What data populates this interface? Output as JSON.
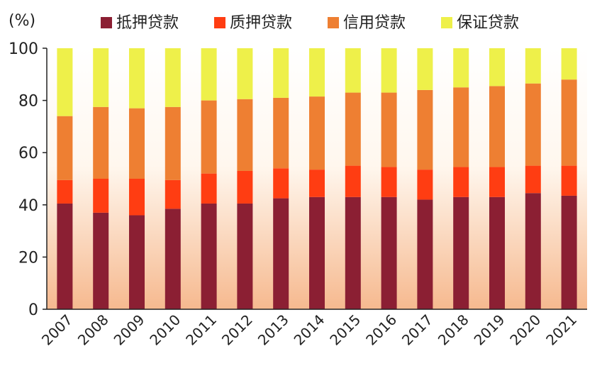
{
  "chart_data": {
    "type": "bar",
    "stacked": true,
    "ylabel": "(%)",
    "ylim": [
      0,
      100
    ],
    "yticks": [
      0,
      20,
      40,
      60,
      80,
      100
    ],
    "grid": false,
    "legend_position": "top",
    "background": "vertical gradient: white at top to peach at bottom",
    "categories": [
      "2007",
      "2008",
      "2009",
      "2010",
      "2011",
      "2012",
      "2013",
      "2014",
      "2015",
      "2016",
      "2017",
      "2018",
      "2019",
      "2020",
      "2021"
    ],
    "series": [
      {
        "name": "抵押贷款",
        "color": "#8b1f33",
        "values": [
          40.5,
          37,
          36,
          38.5,
          40.5,
          40.5,
          42.5,
          43,
          43,
          43,
          42,
          43,
          43,
          44.5,
          43.5
        ]
      },
      {
        "name": "质押贷款",
        "color": "#ff3d12",
        "values": [
          9,
          13,
          14,
          11,
          11.5,
          12.5,
          11.5,
          10.5,
          12,
          11.5,
          11.5,
          11.5,
          11.5,
          10.5,
          11.5
        ]
      },
      {
        "name": "信用贷款",
        "color": "#ee7f32",
        "values": [
          24.5,
          27.5,
          27,
          28,
          28,
          27.5,
          27,
          28,
          28,
          28.5,
          30.5,
          30.5,
          31,
          31.5,
          33
        ]
      },
      {
        "name": "保证贷款",
        "color": "#eef04a",
        "values": [
          26,
          22.5,
          23,
          22.5,
          20,
          19.5,
          19,
          18.5,
          17,
          17,
          16,
          15,
          14.5,
          13.5,
          12
        ]
      }
    ]
  }
}
